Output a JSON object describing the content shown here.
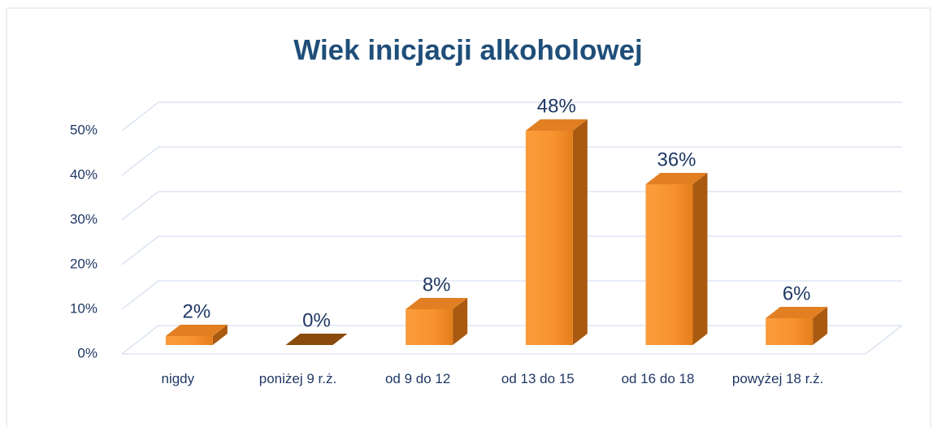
{
  "chart_data": {
    "type": "bar3d",
    "title": "Wiek inicjacji alkoholowej",
    "categories": [
      "nigdy",
      "poniżej 9 r.ż.",
      "od 9 do 12",
      "od 13 do 15",
      "od 16 do 18",
      "powyżej 18 r.ż."
    ],
    "values": [
      2,
      0,
      8,
      48,
      36,
      6
    ],
    "value_labels": [
      "2%",
      "0%",
      "8%",
      "48%",
      "36%",
      "6%"
    ],
    "color": "#f7922e",
    "ylim": [
      0,
      50
    ],
    "yticks": [
      {
        "value": 0,
        "label": "0%"
      },
      {
        "value": 10,
        "label": "10%"
      },
      {
        "value": 20,
        "label": "20%"
      },
      {
        "value": 30,
        "label": "30%"
      },
      {
        "value": 40,
        "label": "40%"
      },
      {
        "value": 50,
        "label": "50%"
      }
    ],
    "grid": true
  }
}
